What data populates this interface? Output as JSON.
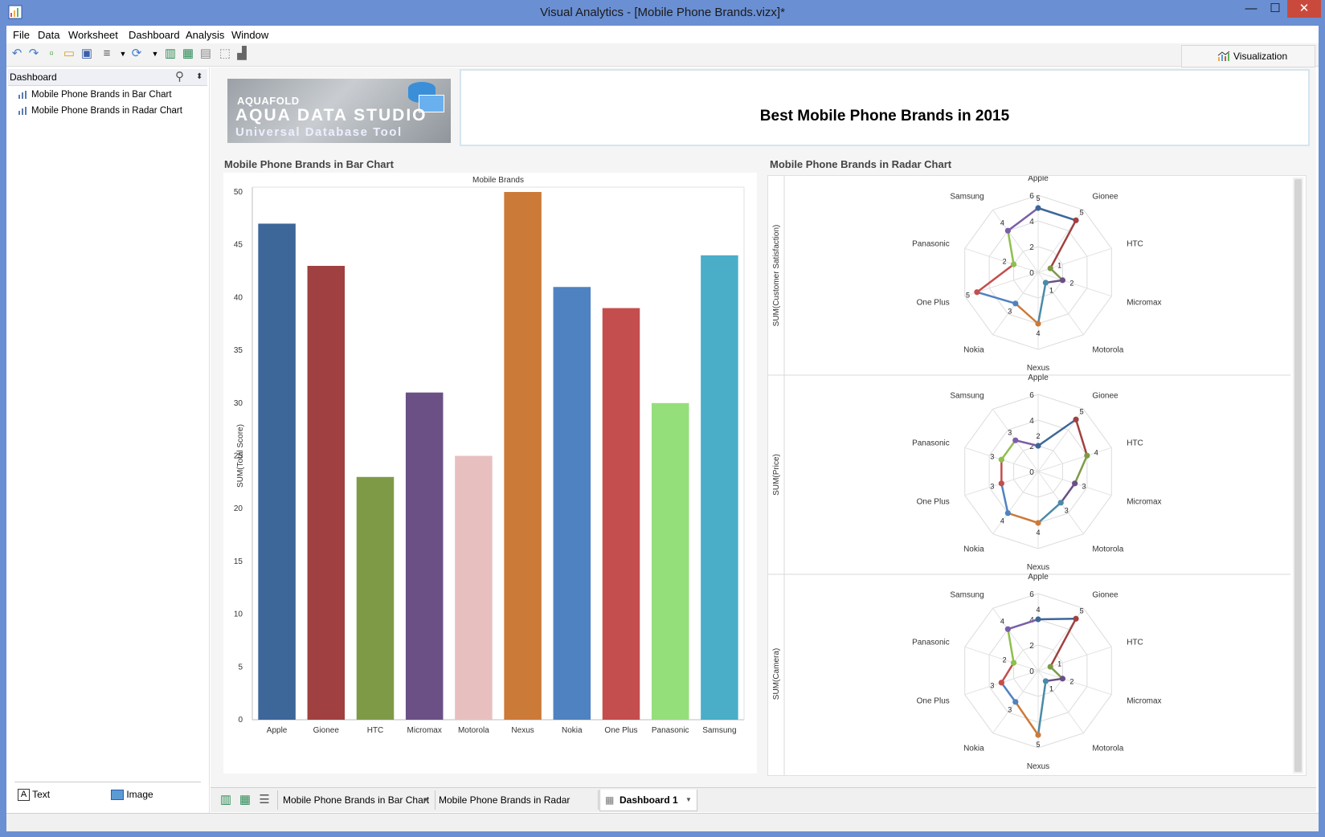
{
  "window": {
    "title": "Visual Analytics - [Mobile Phone Brands.vizx]*",
    "min_glyph": "—",
    "max_glyph": "☐",
    "close_glyph": "✕"
  },
  "menu": [
    "File",
    "Data",
    "Worksheet",
    "Dashboard",
    "Analysis",
    "Window"
  ],
  "toolbar": {
    "visualization_label": "Visualization"
  },
  "left_panel": {
    "header": "Dashboard",
    "items": [
      "Mobile Phone Brands  in Bar Chart",
      "Mobile Phone Brands in Radar Chart"
    ],
    "text_btn": "Text",
    "image_btn": "Image"
  },
  "logo": {
    "brand": "AQUAFOLD",
    "name": "AQUA DATA STUDIO",
    "tagline": "Universal Database Tool"
  },
  "dashboard": {
    "title": "Best Mobile Phone Brands in 2015",
    "bar_section_title": "Mobile Phone Brands  in Bar Chart",
    "radar_section_title": "Mobile Phone Brands in Radar Chart"
  },
  "tabs": [
    "Mobile Phone Brands  in Bar Chart",
    "Mobile Phone Brands in Radar Chart",
    "Dashboard 1"
  ],
  "colors": {
    "accent": "#6a8fd3",
    "close": "#c94a3c"
  },
  "chart_data": [
    {
      "type": "bar",
      "title": "Mobile Brands",
      "xlabel": "",
      "ylabel": "SUM(Total Score)",
      "ylim": [
        0,
        50
      ],
      "yticks": [
        0,
        5,
        10,
        15,
        20,
        25,
        30,
        35,
        40,
        45,
        50
      ],
      "categories": [
        "Apple",
        "Gionee",
        "HTC",
        "Micromax",
        "Motorola",
        "Nexus",
        "Nokia",
        "One Plus",
        "Panasonic",
        "Samsung"
      ],
      "values": [
        47,
        43,
        23,
        31,
        25,
        50,
        41,
        39,
        30,
        44
      ],
      "colors": [
        "#3d6699",
        "#a04040",
        "#7f9a47",
        "#6a5085",
        "#e8bfbf",
        "#cc7a38",
        "#4f82c0",
        "#c44e4e",
        "#95df7b",
        "#4aaec9"
      ],
      "grid": false
    },
    {
      "type": "radar",
      "axis_label": "SUM(Customer Satisfaction)",
      "categories": [
        "Apple",
        "Gionee",
        "HTC",
        "Micromax",
        "Motorola",
        "Nexus",
        "Nokia",
        "One Plus",
        "Panasonic",
        "Samsung"
      ],
      "values": [
        5,
        5,
        1,
        2,
        1,
        4,
        3,
        5,
        2,
        4
      ],
      "ticks": [
        0,
        2,
        4,
        6
      ],
      "max": 6
    },
    {
      "type": "radar",
      "axis_label": "SUM(Price)",
      "categories": [
        "Apple",
        "Gionee",
        "HTC",
        "Micromax",
        "Motorola",
        "Nexus",
        "Nokia",
        "One Plus",
        "Panasonic",
        "Samsung"
      ],
      "values": [
        2,
        5,
        4,
        3,
        3,
        4,
        4,
        3,
        3,
        3
      ],
      "ticks": [
        0,
        2,
        4,
        6
      ],
      "max": 6
    },
    {
      "type": "radar",
      "axis_label": "SUM(Camera)",
      "categories": [
        "Apple",
        "Gionee",
        "HTC",
        "Micromax",
        "Motorola",
        "Nexus",
        "Nokia",
        "One Plus",
        "Panasonic",
        "Samsung"
      ],
      "values": [
        4,
        5,
        1,
        2,
        1,
        5,
        3,
        3,
        2,
        4
      ],
      "ticks": [
        0,
        2,
        4,
        6
      ],
      "max": 6
    }
  ]
}
